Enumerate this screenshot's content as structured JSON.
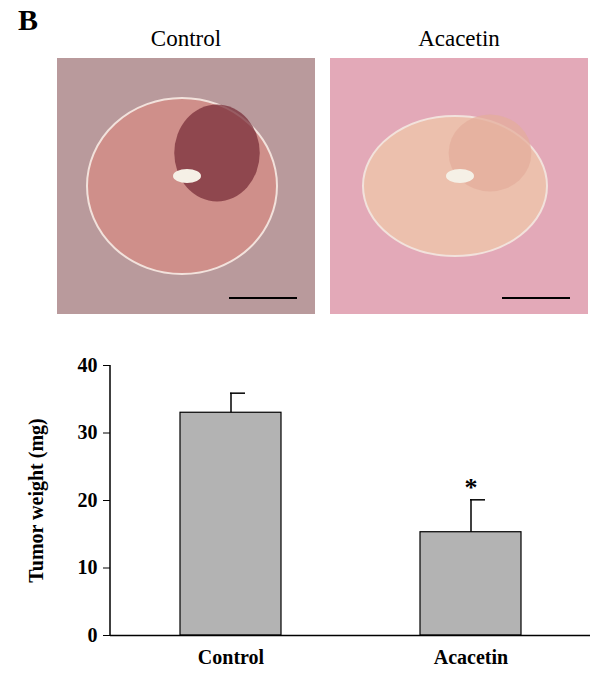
{
  "panel_label": "B",
  "images": [
    {
      "caption": "Control"
    },
    {
      "caption": "Acacetin"
    }
  ],
  "chart_data": {
    "type": "bar",
    "y_label": "Tumor weight (mg)",
    "categories": [
      "Control",
      "Acacetin"
    ],
    "values": [
      33,
      15.3
    ],
    "errors": [
      2.9,
      4.8
    ],
    "color": "#b3b3b3",
    "ylim": [
      0,
      40
    ],
    "yticks": [
      0,
      10,
      20,
      30,
      40
    ],
    "annotations": [
      {
        "category": "Acacetin",
        "text": "*"
      }
    ]
  }
}
